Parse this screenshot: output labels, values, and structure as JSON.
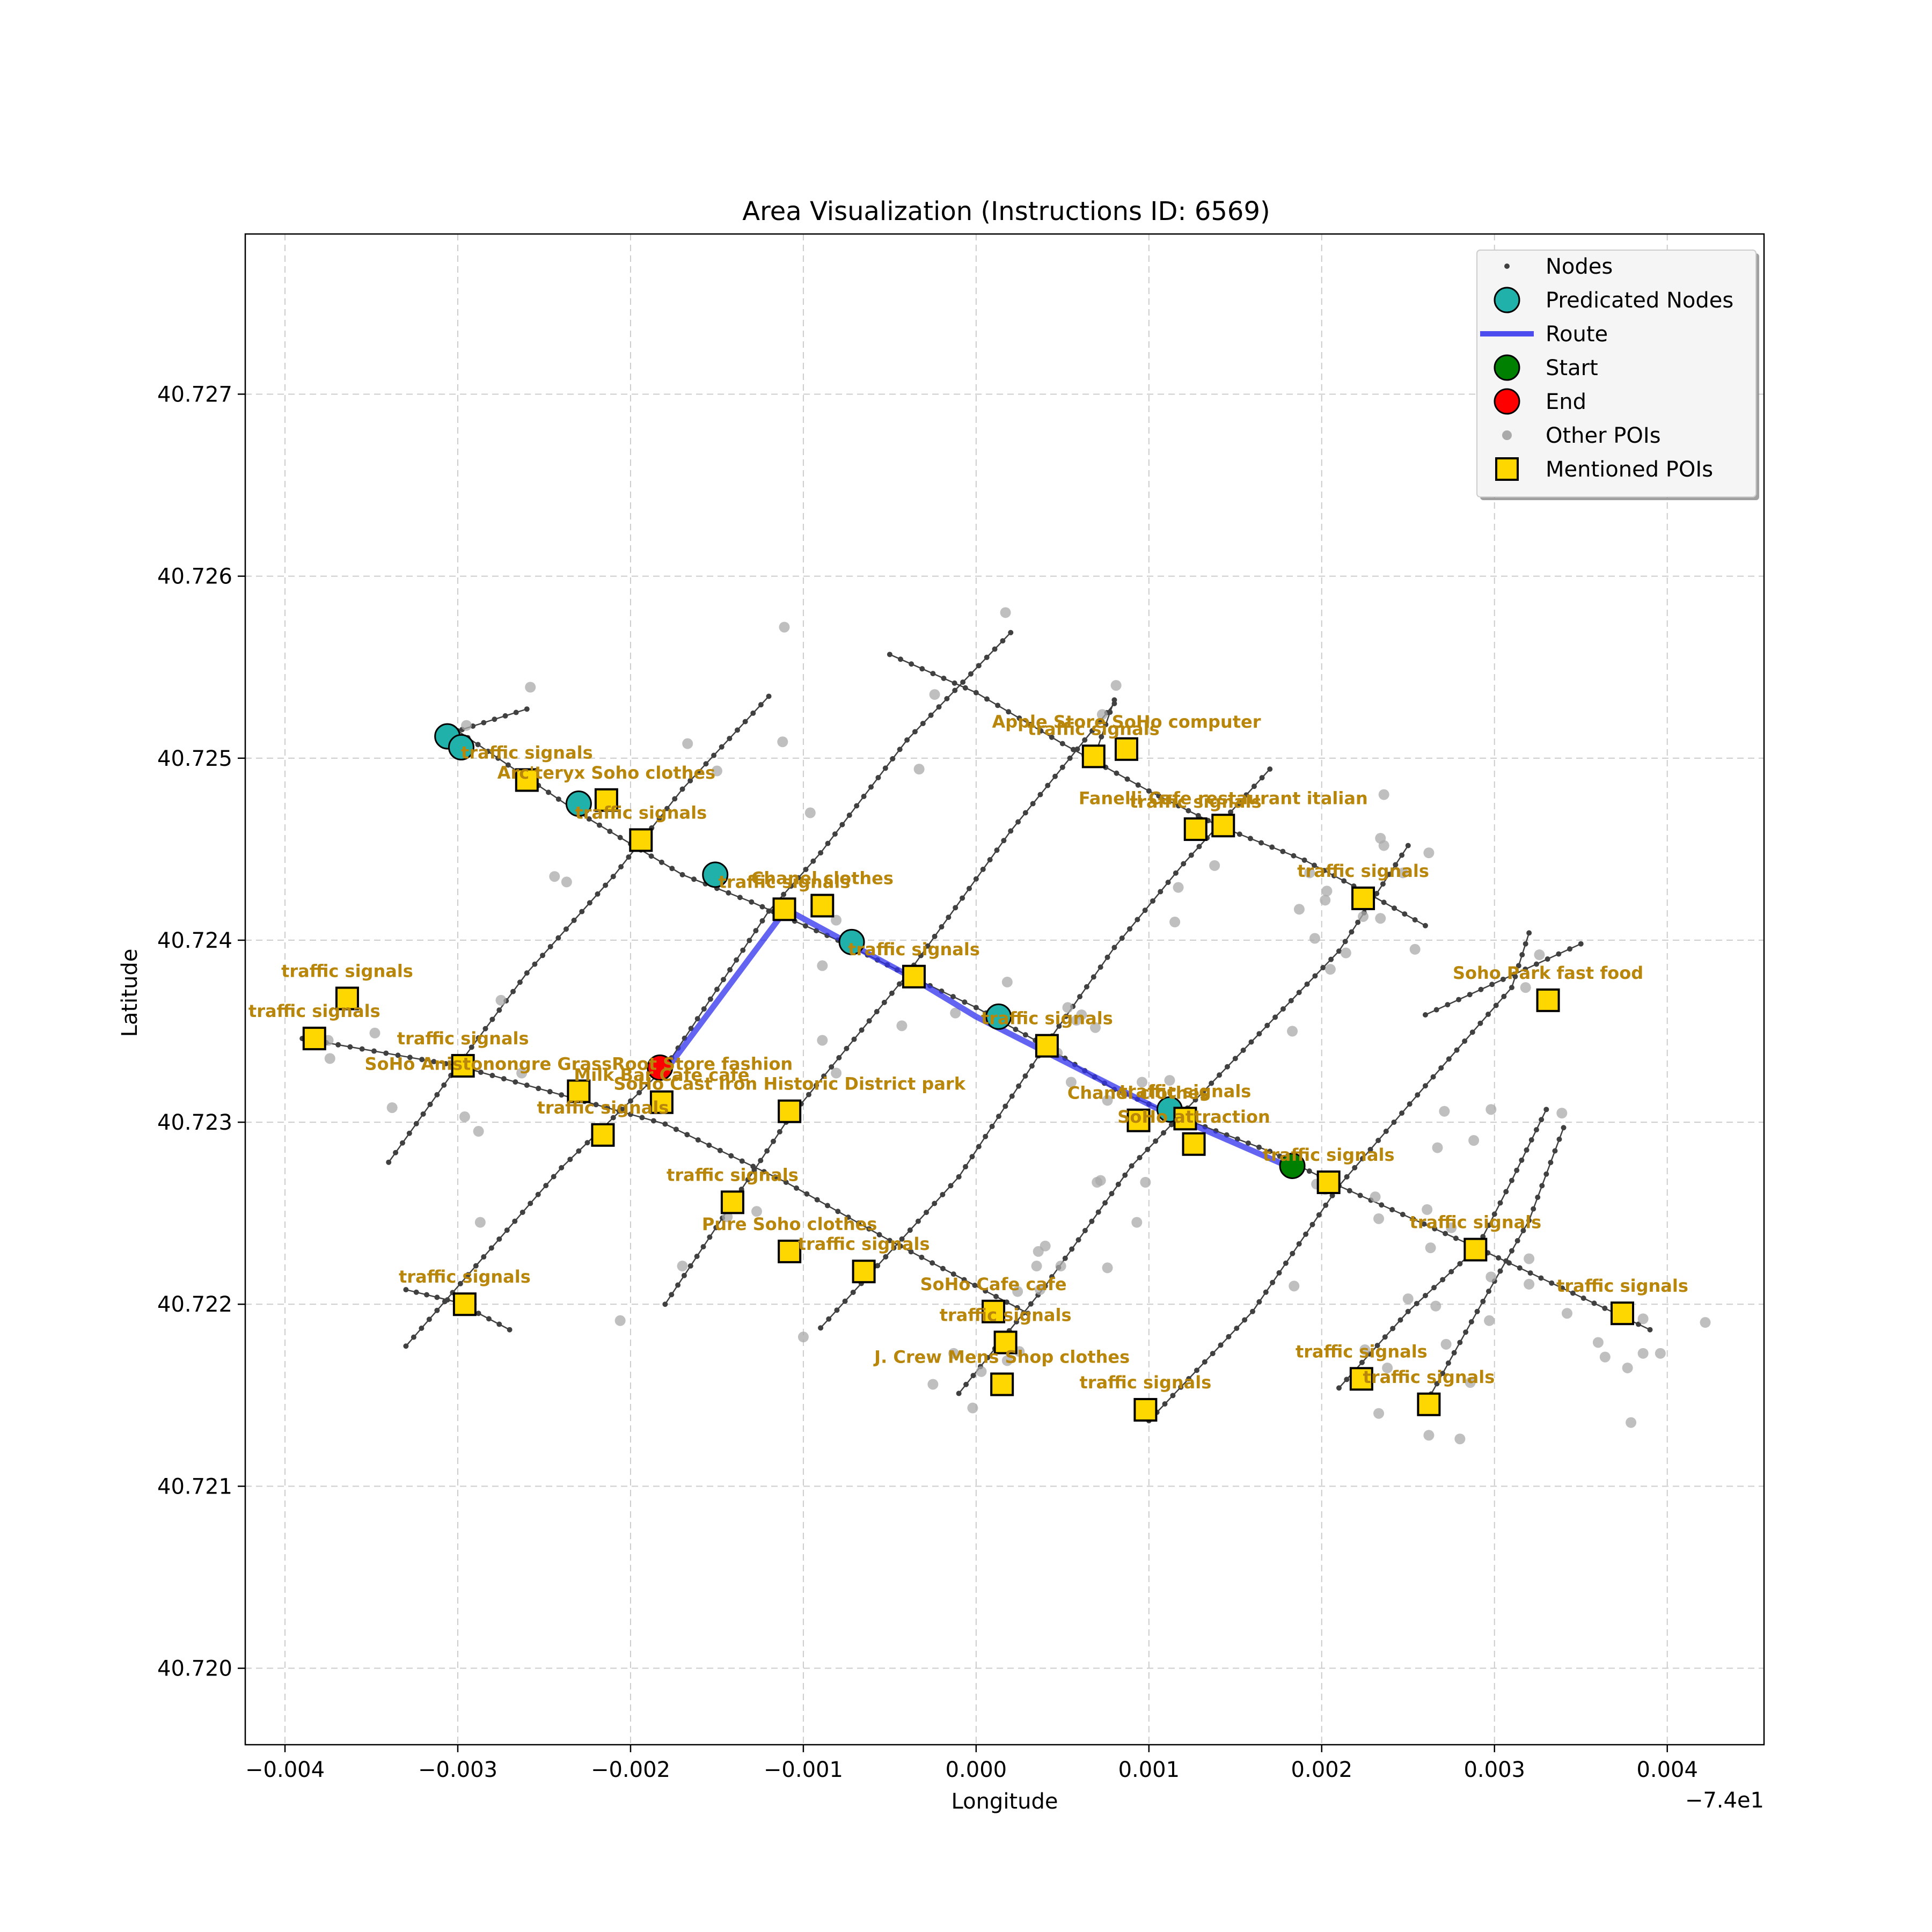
{
  "chart_data": {
    "type": "scatter",
    "title": "Area Visualization (Instructions ID: 6569)",
    "xlabel": "Longitude",
    "ylabel": "Latitude",
    "x_offset_label": "−7.4e1",
    "xlim": [
      -0.00423,
      0.00456
    ],
    "ylim": [
      40.71958,
      40.72788
    ],
    "xticks": [
      -0.004,
      -0.003,
      -0.002,
      -0.001,
      0.0,
      0.001,
      0.002,
      0.003,
      0.004
    ],
    "xtick_labels": [
      "−0.004",
      "−0.003",
      "−0.002",
      "−0.001",
      "0.000",
      "0.001",
      "0.002",
      "0.003",
      "0.004"
    ],
    "yticks": [
      40.72,
      40.721,
      40.722,
      40.723,
      40.724,
      40.725,
      40.726,
      40.727
    ],
    "ytick_labels": [
      "40.720",
      "40.721",
      "40.722",
      "40.723",
      "40.724",
      "40.725",
      "40.726",
      "40.727"
    ],
    "grid": true,
    "legend_position": "top-right",
    "legend": [
      "Nodes",
      "Predicated Nodes",
      "Route",
      "Start",
      "End",
      "Other POIs",
      "Mentioned POIs"
    ],
    "colors": {
      "node": "#404040",
      "predicated": "#20b2aa",
      "route": "#3030ee",
      "start": "#008000",
      "end": "#ff0000",
      "other_poi": "#aaaaaa",
      "mentioned_poi": "#ffd700",
      "label": "#b8860b",
      "grid": "#cccccc"
    },
    "streets": [
      [
        [
          -0.0039,
          40.72346
        ],
        [
          -0.003,
          40.72331
        ],
        [
          -0.0018,
          40.72299
        ],
        [
          -0.0011,
          40.72267
        ],
        [
          -0.0005,
          40.72235
        ],
        [
          0.0003,
          40.72195
        ]
      ],
      [
        [
          -0.0033,
          40.72208
        ],
        [
          -0.003,
          40.72201
        ],
        [
          -0.0027,
          40.72186
        ]
      ],
      [
        [
          -0.003,
          40.72515
        ],
        [
          -0.0023,
          40.7247
        ],
        [
          -0.0017,
          40.72436
        ],
        [
          -0.0013,
          40.72421
        ],
        [
          -0.0008,
          40.724
        ],
        [
          -0.0004,
          40.72381
        ],
        [
          0.0,
          40.72363
        ],
        [
          0.0004,
          40.72342
        ],
        [
          0.0008,
          40.72318
        ],
        [
          0.0012,
          40.72302
        ],
        [
          0.0017,
          40.72284
        ],
        [
          0.0021,
          40.72265
        ],
        [
          0.0029,
          40.72231
        ],
        [
          0.0037,
          40.72195
        ],
        [
          0.0039,
          40.72186
        ]
      ],
      [
        [
          -0.0005,
          40.72557
        ],
        [
          0.0,
          40.72536
        ],
        [
          0.0005,
          40.72508
        ],
        [
          0.001,
          40.72482
        ],
        [
          0.0014,
          40.72463
        ],
        [
          0.0019,
          40.72444
        ],
        [
          0.0023,
          40.72424
        ],
        [
          0.0026,
          40.72408
        ]
      ],
      [
        [
          0.0035,
          40.72398
        ],
        [
          0.0026,
          40.72359
        ]
      ],
      [
        [
          -0.0034,
          40.72278
        ],
        [
          -0.003,
          40.72331
        ],
        [
          -0.0026,
          40.72382
        ],
        [
          -0.0021,
          40.72435
        ],
        [
          -0.0017,
          40.72483
        ],
        [
          -0.0012,
          40.72534
        ]
      ],
      [
        [
          -0.0033,
          40.72177
        ],
        [
          -0.0024,
          40.72275
        ],
        [
          -0.0018,
          40.7233
        ],
        [
          -0.0012,
          40.72416
        ],
        [
          -0.0009,
          40.72448
        ],
        [
          -0.0004,
          40.7251
        ],
        [
          0.0002,
          40.72569
        ]
      ],
      [
        [
          -0.0018,
          40.722
        ],
        [
          -0.0011,
          40.723
        ],
        [
          -0.0004,
          40.72381
        ],
        [
          0.0002,
          40.7246
        ],
        [
          0.0008,
          40.7253
        ]
      ],
      [
        [
          -0.0009,
          40.72187
        ],
        [
          -0.0001,
          40.7227
        ],
        [
          0.0004,
          40.72342
        ],
        [
          0.0008,
          40.72396
        ],
        [
          0.0012,
          40.72442
        ],
        [
          0.0017,
          40.72494
        ]
      ],
      [
        [
          -0.0001,
          40.72151
        ],
        [
          0.0004,
          40.7221
        ],
        [
          0.0009,
          40.72276
        ],
        [
          0.0015,
          40.72335
        ],
        [
          0.0021,
          40.72394
        ],
        [
          0.0025,
          40.72452
        ]
      ],
      [
        [
          0.001,
          40.72136
        ],
        [
          0.0016,
          40.72196
        ],
        [
          0.0021,
          40.72265
        ],
        [
          0.0026,
          40.7232
        ],
        [
          0.0031,
          40.72374
        ],
        [
          0.0032,
          40.72404
        ]
      ],
      [
        [
          0.0021,
          40.72154
        ],
        [
          0.0025,
          40.72196
        ],
        [
          0.0029,
          40.72231
        ],
        [
          0.0031,
          40.72268
        ],
        [
          0.0033,
          40.72307
        ]
      ],
      [
        [
          0.0026,
          40.72145
        ],
        [
          0.0029,
          40.72196
        ],
        [
          0.0032,
          40.72246
        ],
        [
          0.0034,
          40.72297
        ]
      ],
      [
        [
          -0.0031,
          40.72512
        ],
        [
          -0.0026,
          40.72527
        ]
      ],
      [
        [
          0.0008,
          40.72532
        ],
        [
          0.0007,
          40.72505
        ]
      ]
    ],
    "route": [
      [
        0.0018,
        40.72276
      ],
      [
        0.0011,
        40.72305
      ],
      [
        0.0,
        40.72358
      ],
      [
        -0.0004,
        40.72381
      ],
      [
        -0.0011,
        40.72417
      ],
      [
        -0.0018,
        40.72328
      ]
    ],
    "start": [
      0.00183,
      40.72276
    ],
    "end": [
      -0.00183,
      40.7233
    ],
    "predicated_nodes": [
      [
        -0.00306,
        40.72512
      ],
      [
        -0.00298,
        40.72506
      ],
      [
        -0.0023,
        40.72475
      ],
      [
        -0.00151,
        40.72436
      ],
      [
        -0.00072,
        40.72399
      ],
      [
        0.00013,
        40.72358
      ],
      [
        0.00112,
        40.72307
      ]
    ],
    "other_pois": [
      [
        -0.00295,
        40.72518
      ],
      [
        -0.00258,
        40.72539
      ],
      [
        -0.00167,
        40.72508
      ],
      [
        -0.0015,
        40.72493
      ],
      [
        -0.00111,
        40.72572
      ],
      [
        -0.00112,
        40.72509
      ],
      [
        -0.00096,
        40.7247
      ],
      [
        -0.00081,
        40.72411
      ],
      [
        -0.00089,
        40.72386
      ],
      [
        -0.00024,
        40.72535
      ],
      [
        -0.00033,
        40.72494
      ],
      [
        0.00017,
        40.7258
      ],
      [
        0.00081,
        40.7254
      ],
      [
        0.00073,
        40.72524
      ],
      [
        0.00138,
        40.72441
      ],
      [
        -0.00237,
        40.72432
      ],
      [
        -0.00244,
        40.72435
      ],
      [
        -0.00275,
        40.72367
      ],
      [
        -0.00288,
        40.72295
      ],
      [
        -0.00296,
        40.72303
      ],
      [
        -0.00338,
        40.72308
      ],
      [
        -0.00374,
        40.72335
      ],
      [
        -0.00375,
        40.72345
      ],
      [
        -0.00348,
        40.72349
      ],
      [
        -0.00263,
        40.72327
      ],
      [
        -0.00287,
        40.72245
      ],
      [
        -0.00206,
        40.72191
      ],
      [
        -0.00089,
        40.72345
      ],
      [
        -0.00081,
        40.72327
      ],
      [
        -0.00043,
        40.72353
      ],
      [
        -0.00012,
        40.7236
      ],
      [
        0.00053,
        40.72363
      ],
      [
        0.00058,
        40.72356
      ],
      [
        0.00069,
        40.72352
      ],
      [
        0.00047,
        40.72338
      ],
      [
        0.00055,
        40.72322
      ],
      [
        0.00076,
        40.72312
      ],
      [
        0.00093,
        40.72303
      ],
      [
        0.00112,
        40.72323
      ],
      [
        0.00098,
        40.72267
      ],
      [
        0.00072,
        40.72268
      ],
      [
        0.0007,
        40.72267
      ],
      [
        0.00093,
        40.72245
      ],
      [
        0.00076,
        40.7222
      ],
      [
        0.00036,
        40.72229
      ],
      [
        0.0004,
        40.72232
      ],
      [
        0.00049,
        40.72221
      ],
      [
        0.00035,
        40.72221
      ],
      [
        0.00037,
        40.72208
      ],
      [
        0.00024,
        40.72207
      ],
      [
        0.00025,
        40.72174
      ],
      [
        0.00018,
        40.72169
      ],
      [
        3e-05,
        40.72163
      ],
      [
        -0.00013,
        40.72173
      ],
      [
        -0.00025,
        40.72156
      ],
      [
        -2e-05,
        40.72143
      ],
      [
        -0.00127,
        40.72251
      ],
      [
        -0.00144,
        40.72248
      ],
      [
        -0.001,
        40.72182
      ],
      [
        -0.0017,
        40.72221
      ],
      [
        0.00184,
        40.7221
      ],
      [
        0.00225,
        40.72175
      ],
      [
        0.00238,
        40.72165
      ],
      [
        0.00272,
        40.72178
      ],
      [
        0.00286,
        40.72157
      ],
      [
        0.00233,
        40.7214
      ],
      [
        0.00262,
        40.72128
      ],
      [
        0.0028,
        40.72126
      ],
      [
        0.0025,
        40.72203
      ],
      [
        0.00266,
        40.72199
      ],
      [
        0.00297,
        40.72191
      ],
      [
        0.0032,
        40.72211
      ],
      [
        0.0032,
        40.72225
      ],
      [
        0.00298,
        40.72215
      ],
      [
        0.00275,
        40.72242
      ],
      [
        0.00263,
        40.72231
      ],
      [
        0.00261,
        40.72252
      ],
      [
        0.00233,
        40.72247
      ],
      [
        0.00231,
        40.72259
      ],
      [
        0.00202,
        40.72263
      ],
      [
        0.00197,
        40.72266
      ],
      [
        0.00267,
        40.72286
      ],
      [
        0.00288,
        40.7229
      ],
      [
        0.00298,
        40.72307
      ],
      [
        0.00271,
        40.72306
      ],
      [
        0.00339,
        40.72305
      ],
      [
        0.0036,
        40.72179
      ],
      [
        0.00364,
        40.72171
      ],
      [
        0.00377,
        40.72165
      ],
      [
        0.00386,
        40.72173
      ],
      [
        0.00396,
        40.72173
      ],
      [
        0.00386,
        40.72192
      ],
      [
        0.00422,
        40.7219
      ],
      [
        0.00379,
        40.72135
      ],
      [
        0.00342,
        40.72195
      ],
      [
        0.00236,
        40.7248
      ],
      [
        0.00234,
        40.72456
      ],
      [
        0.00236,
        40.72452
      ],
      [
        0.00262,
        40.72448
      ],
      [
        0.00193,
        40.72437
      ],
      [
        0.00202,
        40.72422
      ],
      [
        0.00203,
        40.72427
      ],
      [
        0.00224,
        40.72413
      ],
      [
        0.00234,
        40.72412
      ],
      [
        0.00247,
        40.72437
      ],
      [
        0.00254,
        40.72395
      ],
      [
        0.00214,
        40.72393
      ],
      [
        0.00205,
        40.72384
      ],
      [
        0.00187,
        40.72417
      ],
      [
        0.00196,
        40.72401
      ],
      [
        0.00183,
        40.7235
      ],
      [
        0.00326,
        40.72392
      ],
      [
        0.00318,
        40.72374
      ],
      [
        0.00115,
        40.7241
      ],
      [
        0.00117,
        40.72429
      ],
      [
        0.00061,
        40.72359
      ],
      [
        0.00018,
        40.72377
      ],
      [
        0.00096,
        40.72322
      ]
    ],
    "mentioned_pois": [
      {
        "x": -0.00383,
        "y": 40.72346,
        "label": "traffic signals"
      },
      {
        "x": -0.00364,
        "y": 40.72368,
        "label": "traffic signals"
      },
      {
        "x": -0.00297,
        "y": 40.72331,
        "label": "traffic signals"
      },
      {
        "x": -0.0023,
        "y": 40.72317,
        "label": "SoHo Anistonongre GrassRoot Store    fashion"
      },
      {
        "x": -0.00182,
        "y": 40.72311,
        "label": "Milk Bar Cafe cafe"
      },
      {
        "x": -0.00216,
        "y": 40.72293,
        "label": "traffic signals"
      },
      {
        "x": -0.00296,
        "y": 40.722,
        "label": "traffic signals"
      },
      {
        "x": -0.00141,
        "y": 40.72256,
        "label": "traffic signals"
      },
      {
        "x": -0.00108,
        "y": 40.72306,
        "label": "SoHo Cast Iron Historic District    park"
      },
      {
        "x": -0.00108,
        "y": 40.72229,
        "label": "Pure Soho     clothes"
      },
      {
        "x": -0.00065,
        "y": 40.72218,
        "label": "traffic signals"
      },
      {
        "x": 0.0001,
        "y": 40.72196,
        "label": "SoHo Cafe cafe"
      },
      {
        "x": 0.00017,
        "y": 40.72179,
        "label": "traffic signals"
      },
      {
        "x": 0.00015,
        "y": 40.72156,
        "label": "J. Crew Mens Shop     clothes"
      },
      {
        "x": 0.00098,
        "y": 40.72142,
        "label": "traffic signals"
      },
      {
        "x": -0.0026,
        "y": 40.72488,
        "label": "traffic signals"
      },
      {
        "x": -0.00214,
        "y": 40.72477,
        "label": "Arc'teryx Soho     clothes"
      },
      {
        "x": -0.00194,
        "y": 40.72455,
        "label": "traffic signals"
      },
      {
        "x": -0.00111,
        "y": 40.72417,
        "label": "traffic signals"
      },
      {
        "x": -0.00089,
        "y": 40.72419,
        "label": "Chanel     clothes"
      },
      {
        "x": -0.00036,
        "y": 40.7238,
        "label": "traffic signals"
      },
      {
        "x": 0.00041,
        "y": 40.72342,
        "label": "traffic signals"
      },
      {
        "x": 0.00068,
        "y": 40.72501,
        "label": "traffic signals"
      },
      {
        "x": 0.00087,
        "y": 40.72505,
        "label": "Apple Store SoHo     computer"
      },
      {
        "x": 0.00127,
        "y": 40.72461,
        "label": "traffic signals"
      },
      {
        "x": 0.00143,
        "y": 40.72463,
        "label": "Fanelli Cafe restaurant italian"
      },
      {
        "x": 0.00224,
        "y": 40.72423,
        "label": "traffic signals"
      },
      {
        "x": 0.00331,
        "y": 40.72367,
        "label": "Soho Park fast food"
      },
      {
        "x": 0.00094,
        "y": 40.72301,
        "label": "Chanel clothes"
      },
      {
        "x": 0.00121,
        "y": 40.72302,
        "label": "traffic signals"
      },
      {
        "x": 0.00126,
        "y": 40.72288,
        "label": "SoHo attraction"
      },
      {
        "x": 0.00204,
        "y": 40.72267,
        "label": "traffic signals"
      },
      {
        "x": 0.00289,
        "y": 40.7223,
        "label": "traffic signals"
      },
      {
        "x": 0.00374,
        "y": 40.72195,
        "label": "traffic signals"
      },
      {
        "x": 0.00223,
        "y": 40.72159,
        "label": "traffic signals"
      },
      {
        "x": 0.00262,
        "y": 40.72145,
        "label": "traffic signals"
      }
    ]
  }
}
